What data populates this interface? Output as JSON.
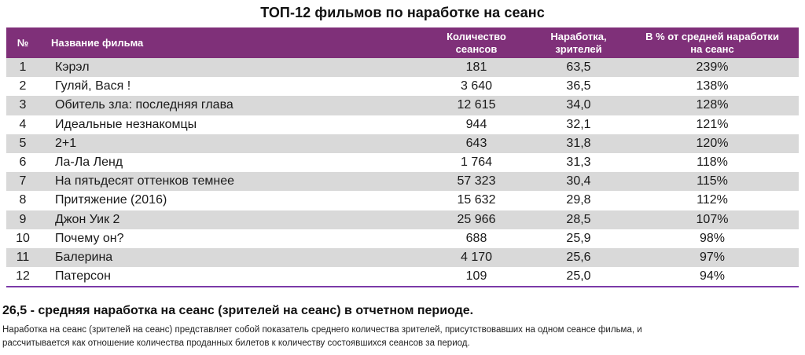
{
  "title": "ТОП-12 фильмов по наработке на сеанс",
  "table": {
    "headers": {
      "num": "№",
      "name": "Название фильма",
      "sessions_line1": "Количество",
      "sessions_line2": "сеансов",
      "avg_line1": "Наработка,",
      "avg_line2": "зрителей",
      "pct_line1": "В % от средней наработки",
      "pct_line2": "на сеанс"
    },
    "rows": [
      {
        "num": "1",
        "name": "Кэрэл",
        "sessions": "181",
        "avg": "63,5",
        "pct": "239%"
      },
      {
        "num": "2",
        "name": "Гуляй, Вася !",
        "sessions": "3 640",
        "avg": "36,5",
        "pct": "138%"
      },
      {
        "num": "3",
        "name": "Обитель зла: последняя глава",
        "sessions": "12 615",
        "avg": "34,0",
        "pct": "128%"
      },
      {
        "num": "4",
        "name": "Идеальные незнакомцы",
        "sessions": "944",
        "avg": "32,1",
        "pct": "121%"
      },
      {
        "num": "5",
        "name": "2+1",
        "sessions": "643",
        "avg": "31,8",
        "pct": "120%"
      },
      {
        "num": "6",
        "name": "Ла-Ла Ленд",
        "sessions": "1 764",
        "avg": "31,3",
        "pct": "118%"
      },
      {
        "num": "7",
        "name": "На пятьдесят оттенков темнее",
        "sessions": "57 323",
        "avg": "30,4",
        "pct": "115%"
      },
      {
        "num": "8",
        "name": "Притяжение (2016)",
        "sessions": "15 632",
        "avg": "29,8",
        "pct": "112%"
      },
      {
        "num": "9",
        "name": "Джон Уик 2",
        "sessions": "25 966",
        "avg": "28,5",
        "pct": "107%"
      },
      {
        "num": "10",
        "name": "Почему он?",
        "sessions": "688",
        "avg": "25,9",
        "pct": "98%"
      },
      {
        "num": "11",
        "name": "Балерина",
        "sessions": "4 170",
        "avg": "25,6",
        "pct": "97%"
      },
      {
        "num": "12",
        "name": "Патерсон",
        "sessions": "109",
        "avg": "25,0",
        "pct": "94%"
      }
    ]
  },
  "footer": {
    "summary": "26,5 - средняя наработка на сеанс (зрителей на сеанс) в отчетном периоде.",
    "line1": "Наработка на сеанс (зрителей на сеанс) представляет собой показатель среднего количества зрителей, присутствовавших на одном сеансе фильма, и",
    "line2": "рассчитывается как отношение количества проданных билетов к количеству состоявшихся сеансов за период."
  },
  "colors": {
    "header_bg": "#7f3079",
    "stripe_bg": "#d9d9d9",
    "bottom_rule": "#7b3aa8"
  }
}
